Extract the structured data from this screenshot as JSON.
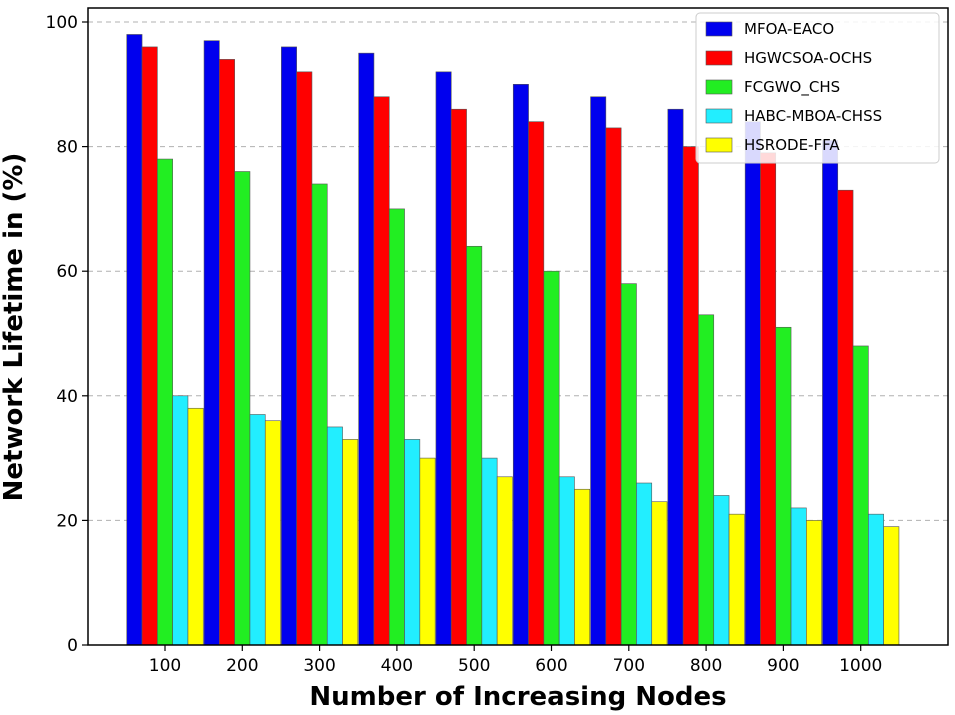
{
  "chart_data": {
    "type": "bar",
    "title": "",
    "xlabel": "Number of Increasing Nodes",
    "ylabel": "Network Lifetime in (%)",
    "ylim": [
      0,
      100
    ],
    "yticks": [
      0,
      20,
      40,
      60,
      80,
      100
    ],
    "grid": true,
    "legend_position": "top-right",
    "categories": [
      "100",
      "200",
      "300",
      "400",
      "500",
      "600",
      "700",
      "800",
      "900",
      "1000"
    ],
    "series": [
      {
        "name": "MFOA-EACO",
        "color": "#0000ee",
        "values": [
          98,
          97,
          96,
          95,
          92,
          90,
          88,
          86,
          84,
          81
        ]
      },
      {
        "name": "HGWCSOA-OCHS",
        "color": "#ff0000",
        "values": [
          96,
          94,
          92,
          88,
          86,
          84,
          83,
          80,
          79,
          73
        ]
      },
      {
        "name": "FCGWO_CHS",
        "color": "#22ee22",
        "values": [
          78,
          76,
          74,
          70,
          64,
          60,
          58,
          53,
          51,
          48
        ]
      },
      {
        "name": "HABC-MBOA-CHSS",
        "color": "#22eeff",
        "values": [
          40,
          37,
          35,
          33,
          30,
          27,
          26,
          24,
          22,
          21
        ]
      },
      {
        "name": "HSRODE-FFA",
        "color": "#ffff00",
        "values": [
          38,
          36,
          33,
          30,
          27,
          25,
          23,
          21,
          20,
          19
        ]
      }
    ]
  }
}
